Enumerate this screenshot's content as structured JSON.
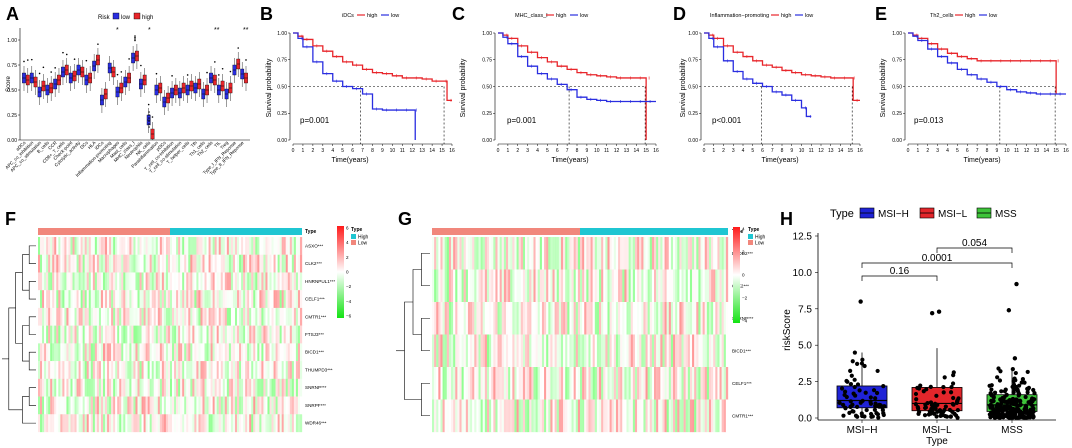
{
  "figure_label": "Multi-panel figure: immune scores, survival curves, heatmaps and riskScore by MSI type",
  "colors": {
    "low": "#2a2ee0",
    "high": "#e8262b",
    "msih": "#1f23d6",
    "msil": "#e3262b",
    "mss": "#3ec43a",
    "heat_high": "#ff1a1a",
    "heat_low": "#13e313",
    "type_high": "#1fc6d2",
    "type_low": "#f1877c"
  },
  "panels": {
    "A": {
      "letter": "A",
      "legend_title": "Risk",
      "legend_low": "low",
      "legend_high": "high",
      "ylabel": "Score",
      "yticks": [
        "0.00",
        "0.25",
        "0.50",
        "0.75",
        "1.00"
      ],
      "categories": [
        "aDCs",
        "APC_co_inhibition",
        "APC_co_stimulation",
        "B_cells",
        "CCR",
        "CD8+_T_cells",
        "Check-point",
        "Cytolytic_activity",
        "DCs",
        "HLA",
        "iDCs",
        "Inflammation-promoting",
        "Macrophages",
        "Mast_cells",
        "MHC_class_I",
        "Neutrophils",
        "NK_cells",
        "Parainflammation",
        "pDCs",
        "T_cell_co-inhibition",
        "T_cell_co-stimulation",
        "T_helper_cells",
        "Tfh",
        "Th1_cells",
        "Th2_cells",
        "TIL",
        "Treg",
        "Type_I_IFN_Reponse",
        "Type_II_IFN_Reponse"
      ],
      "sig_marks": [
        "*",
        "*",
        "**",
        "**"
      ]
    },
    "B": {
      "letter": "B",
      "legend": "iDCs",
      "legend_high": "high",
      "legend_low": "low",
      "pvalue": "p=0.001",
      "ylabel": "Survival probability",
      "xlabel": "Time(years)"
    },
    "C": {
      "letter": "C",
      "legend": "MHC_class_I",
      "legend_high": "high",
      "legend_low": "low",
      "pvalue": "p=0.001",
      "ylabel": "Survival probability",
      "xlabel": "Time(years)"
    },
    "D": {
      "letter": "D",
      "legend": "Inflammation−promoting",
      "legend_high": "high",
      "legend_low": "low",
      "pvalue": "p<0.001",
      "ylabel": "Survival probability",
      "xlabel": "Time(years)"
    },
    "E": {
      "letter": "E",
      "legend": "Th2_cells",
      "legend_high": "high",
      "legend_low": "low",
      "pvalue": "p=0.013",
      "ylabel": "Survival probability",
      "xlabel": "Time(years)"
    },
    "F": {
      "letter": "F",
      "genes": [
        "ASXO***",
        "CLK2***",
        "HNRNPUL1***",
        "CELF1***",
        "CMTR1***",
        "FTSJ3***",
        "BICD1***",
        "THUMPD3***",
        "SNRNP***",
        "SNRPF***",
        "WDR46***"
      ],
      "legend_type": "Type",
      "legend_high": "High",
      "legend_low": "Low",
      "scale": [
        "6",
        "4",
        "2",
        "0",
        "−2",
        "−4",
        "−6"
      ]
    },
    "G": {
      "letter": "G",
      "genes": [
        "DEDD2***",
        "CLK2***",
        "SNRNP***",
        "BICD1***",
        "CELF1***",
        "CMTR1***"
      ],
      "legend_type": "Type",
      "legend_high": "High",
      "legend_low": "Low",
      "scale": [
        "4",
        "2",
        "0",
        "−2",
        "−4"
      ]
    },
    "H": {
      "letter": "H",
      "legend_title": "Type",
      "ylabel": "riskScore",
      "xlabel": "Type",
      "yticks": [
        "0.0",
        "2.5",
        "5.0",
        "7.5",
        "10.0",
        "12.5"
      ],
      "comparisons": [
        "0.16",
        "0.0001",
        "0.054"
      ]
    }
  },
  "chart_data": [
    {
      "type": "box",
      "panel": "A",
      "title": "",
      "xlabel": "",
      "ylabel": "Score",
      "ylim": [
        0,
        1.1
      ],
      "categories": [
        "aDCs",
        "APC_co_inhibition",
        "APC_co_stimulation",
        "B_cells",
        "CCR",
        "CD8+_T_cells",
        "Check-point",
        "Cytolytic_activity",
        "DCs",
        "HLA",
        "iDCs",
        "Inflammation-promoting",
        "Macrophages",
        "Mast_cells",
        "MHC_class_I",
        "Neutrophils",
        "NK_cells",
        "Parainflammation",
        "pDCs",
        "T_cell_co-inhibition",
        "T_cell_co-stimulation",
        "T_helper_cells",
        "Tfh",
        "Th1_cells",
        "Th2_cells",
        "TIL",
        "Treg",
        "Type_I_IFN_Reponse",
        "Type_II_IFN_Reponse"
      ],
      "series": [
        {
          "name": "low",
          "medians": [
            0.62,
            0.62,
            0.48,
            0.5,
            0.56,
            0.68,
            0.62,
            0.7,
            0.6,
            0.74,
            0.4,
            0.72,
            0.48,
            0.58,
            0.82,
            0.56,
            0.2,
            0.5,
            0.38,
            0.47,
            0.47,
            0.5,
            0.52,
            0.46,
            0.62,
            0.5,
            0.46,
            0.7,
            0.66
          ]
        },
        {
          "name": "high",
          "medians": [
            0.6,
            0.58,
            0.54,
            0.52,
            0.6,
            0.7,
            0.64,
            0.68,
            0.62,
            0.8,
            0.46,
            0.68,
            0.52,
            0.62,
            0.84,
            0.6,
            0.06,
            0.52,
            0.42,
            0.5,
            0.52,
            0.54,
            0.56,
            0.5,
            0.6,
            0.54,
            0.52,
            0.76,
            0.62
          ]
        }
      ]
    },
    {
      "type": "line",
      "panel": "B",
      "title": "iDCs",
      "xlabel": "Time(years)",
      "ylabel": "Survival probability",
      "xlim": [
        0,
        16
      ],
      "ylim": [
        0,
        1
      ],
      "series": [
        {
          "name": "high",
          "x": [
            0,
            0.5,
            1,
            2,
            3,
            4,
            5,
            6,
            7,
            8,
            9,
            10,
            11,
            12,
            13,
            14,
            15,
            15.5,
            16
          ],
          "y": [
            1,
            0.97,
            0.94,
            0.88,
            0.83,
            0.78,
            0.73,
            0.7,
            0.66,
            0.63,
            0.62,
            0.6,
            0.58,
            0.58,
            0.57,
            0.55,
            0.55,
            0.37,
            0.37
          ]
        },
        {
          "name": "low",
          "x": [
            0,
            0.5,
            1,
            2,
            3,
            4,
            5,
            6,
            7,
            8,
            9,
            10,
            11,
            12,
            12.3
          ],
          "y": [
            1,
            0.95,
            0.87,
            0.73,
            0.62,
            0.55,
            0.5,
            0.48,
            0.43,
            0.29,
            0.28,
            0.28,
            0.28,
            0.28,
            0.0
          ]
        }
      ]
    },
    {
      "type": "line",
      "panel": "C",
      "title": "MHC_class_I",
      "xlabel": "Time(years)",
      "ylabel": "Survival probability",
      "xlim": [
        0,
        16
      ],
      "ylim": [
        0,
        1
      ],
      "series": [
        {
          "name": "high",
          "x": [
            0,
            0.5,
            1,
            2,
            3,
            4,
            5,
            6,
            7,
            8,
            9,
            10,
            11,
            12,
            13,
            14,
            14.9,
            15
          ],
          "y": [
            1,
            0.98,
            0.95,
            0.88,
            0.82,
            0.77,
            0.73,
            0.69,
            0.66,
            0.63,
            0.61,
            0.6,
            0.59,
            0.58,
            0.58,
            0.58,
            0.58,
            0.0
          ]
        },
        {
          "name": "low",
          "x": [
            0,
            0.5,
            1,
            2,
            3,
            4,
            5,
            6,
            7,
            8,
            9,
            10,
            11,
            12,
            13,
            14,
            15,
            16
          ],
          "y": [
            1,
            0.96,
            0.9,
            0.78,
            0.69,
            0.62,
            0.57,
            0.52,
            0.47,
            0.4,
            0.38,
            0.37,
            0.36,
            0.36,
            0.36,
            0.36,
            0.36,
            0.36
          ]
        }
      ]
    },
    {
      "type": "line",
      "panel": "D",
      "title": "Inflammation−promoting",
      "xlabel": "Time(years)",
      "ylabel": "Survival probability",
      "xlim": [
        0,
        16
      ],
      "ylim": [
        0,
        1
      ],
      "series": [
        {
          "name": "high",
          "x": [
            0,
            0.5,
            1,
            2,
            3,
            4,
            5,
            6,
            7,
            8,
            9,
            10,
            11,
            12,
            13,
            14,
            15,
            15.3,
            16
          ],
          "y": [
            1,
            0.98,
            0.95,
            0.88,
            0.82,
            0.78,
            0.74,
            0.7,
            0.68,
            0.65,
            0.63,
            0.61,
            0.6,
            0.59,
            0.58,
            0.58,
            0.58,
            0.37,
            0.37
          ]
        },
        {
          "name": "low",
          "x": [
            0,
            0.5,
            1,
            2,
            3,
            4,
            5,
            6,
            7,
            8,
            9,
            10,
            10.5,
            11
          ],
          "y": [
            1,
            0.95,
            0.87,
            0.74,
            0.64,
            0.57,
            0.53,
            0.5,
            0.45,
            0.42,
            0.37,
            0.3,
            0.22,
            0.22
          ]
        }
      ]
    },
    {
      "type": "line",
      "panel": "E",
      "title": "Th2_cells",
      "xlabel": "Time(years)",
      "ylabel": "Survival probability",
      "xlim": [
        0,
        16
      ],
      "ylim": [
        0,
        1
      ],
      "series": [
        {
          "name": "high",
          "x": [
            0,
            0.5,
            1,
            2,
            3,
            4,
            5,
            6,
            7,
            8,
            9,
            10,
            11,
            12,
            13,
            14,
            14.8,
            15
          ],
          "y": [
            1,
            0.98,
            0.95,
            0.9,
            0.85,
            0.81,
            0.78,
            0.76,
            0.74,
            0.74,
            0.74,
            0.74,
            0.74,
            0.74,
            0.74,
            0.74,
            0.74,
            0.43
          ]
        },
        {
          "name": "low",
          "x": [
            0,
            0.5,
            1,
            2,
            3,
            4,
            5,
            6,
            7,
            8,
            9,
            10,
            11,
            12,
            13,
            14,
            15,
            16
          ],
          "y": [
            1,
            0.97,
            0.93,
            0.85,
            0.78,
            0.72,
            0.66,
            0.61,
            0.57,
            0.54,
            0.5,
            0.47,
            0.45,
            0.44,
            0.43,
            0.43,
            0.43,
            0.43
          ]
        }
      ]
    },
    {
      "type": "box",
      "panel": "H",
      "title": "",
      "xlabel": "Type",
      "ylabel": "riskScore",
      "ylim": [
        0,
        12.5
      ],
      "categories": [
        "MSI−H",
        "MSI−L",
        "MSS"
      ],
      "series": [
        {
          "name": "MSI−H",
          "q1": 0.7,
          "median": 1.2,
          "q3": 2.2,
          "whisker_low": 0.0,
          "whisker_high": 4.5,
          "outliers": [
            8.0
          ]
        },
        {
          "name": "MSI−L",
          "q1": 0.5,
          "median": 1.0,
          "q3": 2.1,
          "whisker_low": 0.0,
          "whisker_high": 4.8,
          "outliers": [
            7.3,
            7.2
          ]
        },
        {
          "name": "MSS",
          "q1": 0.45,
          "median": 0.9,
          "q3": 1.6,
          "whisker_low": 0.0,
          "whisker_high": 3.4,
          "outliers": [
            4.1,
            7.4,
            9.2
          ]
        }
      ],
      "comparisons": [
        {
          "groups": [
            "MSI−H",
            "MSI−L"
          ],
          "p": "0.16"
        },
        {
          "groups": [
            "MSI−H",
            "MSS"
          ],
          "p": "0.0001"
        },
        {
          "groups": [
            "MSI−L",
            "MSS"
          ],
          "p": "0.054"
        }
      ]
    }
  ]
}
